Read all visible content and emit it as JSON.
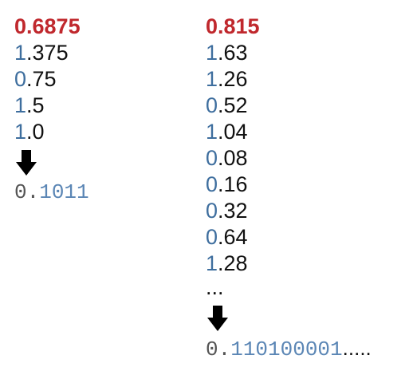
{
  "left": {
    "start_value": "0.6875",
    "rows": [
      {
        "digit": "1",
        "rest": ".375"
      },
      {
        "digit": "0",
        "rest": ".75"
      },
      {
        "digit": "1",
        "rest": ".5"
      },
      {
        "digit": "1",
        "rest": ".0"
      }
    ],
    "arrow_icon": "down-arrow-icon",
    "result_prefix": "0.",
    "result_bits": "1011",
    "result_tail": ""
  },
  "right": {
    "start_value": "0.815",
    "rows": [
      {
        "digit": "1",
        "rest": ".63"
      },
      {
        "digit": "1",
        "rest": ".26"
      },
      {
        "digit": "0",
        "rest": ".52"
      },
      {
        "digit": "1",
        "rest": ".04"
      },
      {
        "digit": "0",
        "rest": ".08"
      },
      {
        "digit": "0",
        "rest": ".16"
      },
      {
        "digit": "0",
        "rest": ".32"
      },
      {
        "digit": "0",
        "rest": ".64"
      },
      {
        "digit": "1",
        "rest": ".28"
      }
    ],
    "ellipsis": "...",
    "arrow_icon": "down-arrow-icon",
    "result_prefix": "0.",
    "result_bits": "110100001",
    "result_tail": "....."
  },
  "colors": {
    "start": "#c0282d",
    "digit": "#3e6e9e",
    "text": "#111111",
    "result_prefix": "#555555",
    "result_bits": "#5b86b5"
  }
}
